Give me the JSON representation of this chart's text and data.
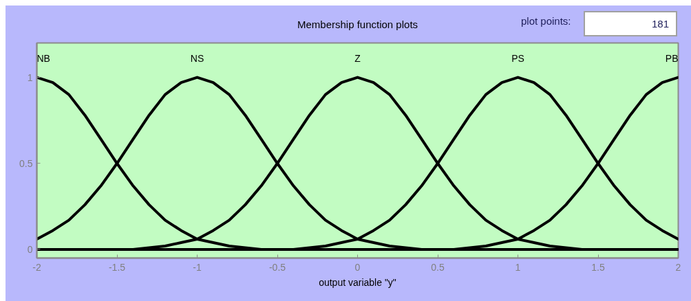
{
  "chart_data": {
    "type": "line",
    "title": "Membership function plots",
    "xlabel": "output variable \"y\"",
    "x": [
      -2,
      -1.9,
      -1.8,
      -1.7,
      -1.6,
      -1.5,
      -1.4,
      -1.3,
      -1.2,
      -1.1,
      -1,
      -0.9,
      -0.8,
      -0.7,
      -0.6,
      -0.5,
      -0.4,
      -0.3,
      -0.2,
      -0.1,
      0,
      0.1,
      0.2,
      0.3,
      0.4,
      0.5,
      0.6,
      0.7,
      0.8,
      0.9,
      1,
      1.1,
      1.2,
      1.3,
      1.4,
      1.5,
      1.6,
      1.7,
      1.8,
      1.9,
      2
    ],
    "series": [
      {
        "name": "NB",
        "color": "#000000",
        "values": [
          1,
          0.97,
          0.9,
          0.78,
          0.64,
          0.5,
          0.37,
          0.26,
          0.17,
          0.11,
          0.06,
          0.04,
          0.02,
          0.01,
          0,
          0,
          0,
          0,
          0,
          0,
          0,
          0,
          0,
          0,
          0,
          0,
          0,
          0,
          0,
          0,
          0,
          0,
          0,
          0,
          0,
          0,
          0,
          0,
          0,
          0,
          0
        ]
      },
      {
        "name": "NS",
        "color": "#000000",
        "values": [
          0.06,
          0.11,
          0.17,
          0.26,
          0.37,
          0.5,
          0.64,
          0.78,
          0.9,
          0.97,
          1,
          0.97,
          0.9,
          0.78,
          0.64,
          0.5,
          0.37,
          0.26,
          0.17,
          0.11,
          0.06,
          0.04,
          0.02,
          0.01,
          0,
          0,
          0,
          0,
          0,
          0,
          0,
          0,
          0,
          0,
          0,
          0,
          0,
          0,
          0,
          0,
          0
        ]
      },
      {
        "name": "Z",
        "color": "#000000",
        "values": [
          0,
          0,
          0,
          0,
          0,
          0,
          0,
          0.01,
          0.02,
          0.04,
          0.06,
          0.11,
          0.17,
          0.26,
          0.37,
          0.5,
          0.64,
          0.78,
          0.9,
          0.97,
          1,
          0.97,
          0.9,
          0.78,
          0.64,
          0.5,
          0.37,
          0.26,
          0.17,
          0.11,
          0.06,
          0.04,
          0.02,
          0.01,
          0,
          0,
          0,
          0,
          0,
          0,
          0
        ]
      },
      {
        "name": "PS",
        "color": "#000000",
        "values": [
          0,
          0,
          0,
          0,
          0,
          0,
          0,
          0,
          0,
          0,
          0,
          0,
          0,
          0,
          0,
          0,
          0,
          0.01,
          0.02,
          0.04,
          0.06,
          0.11,
          0.17,
          0.26,
          0.37,
          0.5,
          0.64,
          0.78,
          0.9,
          0.97,
          1,
          0.97,
          0.9,
          0.78,
          0.64,
          0.5,
          0.37,
          0.26,
          0.17,
          0.11,
          0.06
        ]
      },
      {
        "name": "PB",
        "color": "#000000",
        "values": [
          0,
          0,
          0,
          0,
          0,
          0,
          0,
          0,
          0,
          0,
          0,
          0,
          0,
          0,
          0,
          0,
          0,
          0,
          0,
          0,
          0,
          0,
          0,
          0,
          0,
          0,
          0,
          0.01,
          0.02,
          0.04,
          0.06,
          0.11,
          0.17,
          0.26,
          0.37,
          0.5,
          0.64,
          0.78,
          0.9,
          0.97,
          1
        ]
      }
    ],
    "xlim": [
      -2,
      2
    ],
    "ylim": [
      -0.05,
      1.2
    ],
    "xticks": [
      -2,
      -1.5,
      -1,
      -0.5,
      0,
      0.5,
      1,
      1.5,
      2
    ],
    "yticks": [
      0,
      0.5,
      1
    ],
    "annotations": [
      "plot points:",
      "181"
    ],
    "grid": false,
    "line_style": "solid"
  }
}
